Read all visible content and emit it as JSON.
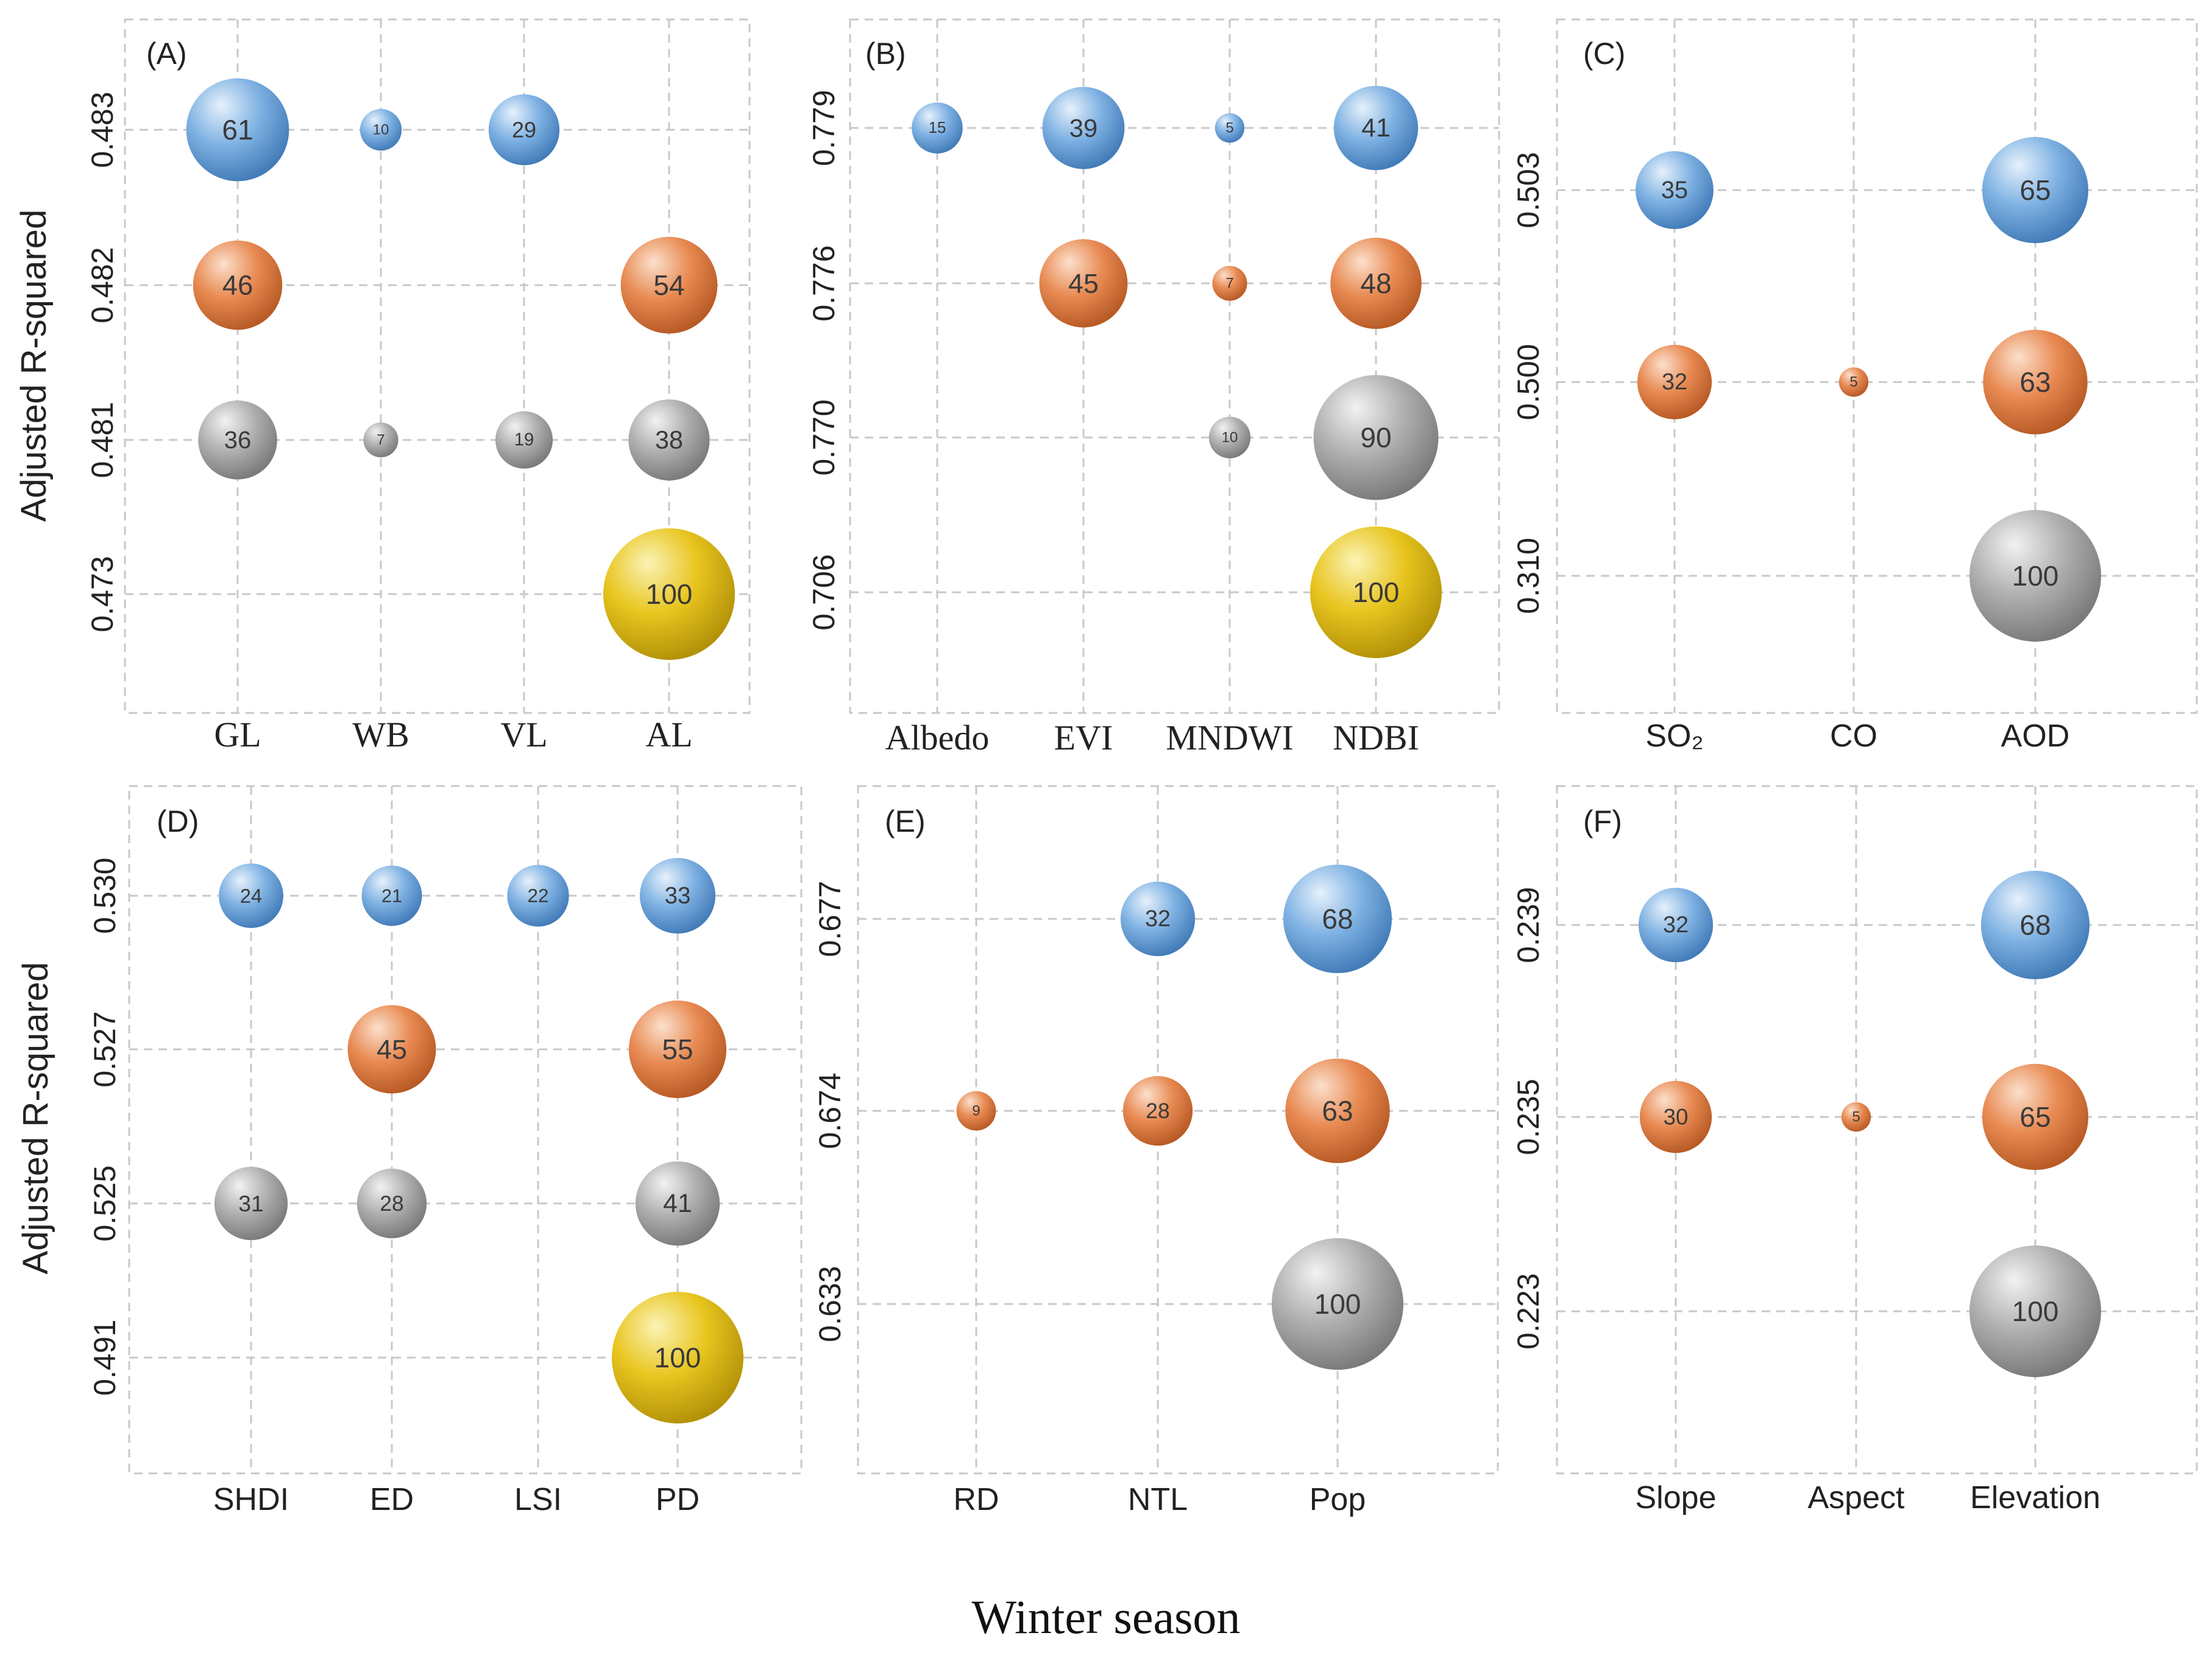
{
  "footer": "Winter season",
  "colors": {
    "blue": "#6fa8dc",
    "orange": "#e4834a",
    "gray": "#a9a9a9",
    "gold": "#e2c21c",
    "grid": "#c8c8c8"
  },
  "chart_data": [
    {
      "type": "scatter",
      "panel": "(A)",
      "ylabel": "Adjusted R-squared",
      "xfont": "serif",
      "categories": [
        "GL",
        "WB",
        "VL",
        "AL"
      ],
      "y_levels": [
        "0.483",
        "0.482",
        "0.481",
        "0.473"
      ],
      "points": [
        {
          "x": "GL",
          "y": "0.483",
          "value": 61,
          "color": "blue"
        },
        {
          "x": "WB",
          "y": "0.483",
          "value": 10,
          "color": "blue"
        },
        {
          "x": "VL",
          "y": "0.483",
          "value": 29,
          "color": "blue"
        },
        {
          "x": "GL",
          "y": "0.482",
          "value": 46,
          "color": "orange"
        },
        {
          "x": "AL",
          "y": "0.482",
          "value": 54,
          "color": "orange"
        },
        {
          "x": "GL",
          "y": "0.481",
          "value": 36,
          "color": "gray"
        },
        {
          "x": "WB",
          "y": "0.481",
          "value": 7,
          "color": "gray"
        },
        {
          "x": "VL",
          "y": "0.481",
          "value": 19,
          "color": "gray"
        },
        {
          "x": "AL",
          "y": "0.481",
          "value": 38,
          "color": "gray"
        },
        {
          "x": "AL",
          "y": "0.473",
          "value": 100,
          "color": "gold"
        }
      ]
    },
    {
      "type": "scatter",
      "panel": "(B)",
      "ylabel": "",
      "xfont": "serif",
      "categories": [
        "Albedo",
        "EVI",
        "MNDWI",
        "NDBI"
      ],
      "y_levels": [
        "0.779",
        "0.776",
        "0.770",
        "0.706"
      ],
      "points": [
        {
          "x": "Albedo",
          "y": "0.779",
          "value": 15,
          "color": "blue"
        },
        {
          "x": "EVI",
          "y": "0.779",
          "value": 39,
          "color": "blue"
        },
        {
          "x": "MNDWI",
          "y": "0.779",
          "value": 5,
          "color": "blue"
        },
        {
          "x": "NDBI",
          "y": "0.779",
          "value": 41,
          "color": "blue"
        },
        {
          "x": "EVI",
          "y": "0.776",
          "value": 45,
          "color": "orange"
        },
        {
          "x": "MNDWI",
          "y": "0.776",
          "value": 7,
          "color": "orange"
        },
        {
          "x": "NDBI",
          "y": "0.776",
          "value": 48,
          "color": "orange"
        },
        {
          "x": "MNDWI",
          "y": "0.770",
          "value": 10,
          "color": "gray"
        },
        {
          "x": "NDBI",
          "y": "0.770",
          "value": 90,
          "color": "gray"
        },
        {
          "x": "NDBI",
          "y": "0.706",
          "value": 100,
          "color": "gold"
        }
      ]
    },
    {
      "type": "scatter",
      "panel": "(C)",
      "ylabel": "",
      "xfont": "sans",
      "categories": [
        "SO₂",
        "CO",
        "AOD"
      ],
      "y_levels": [
        "0.503",
        "0.500",
        "0.310"
      ],
      "points": [
        {
          "x": "SO₂",
          "y": "0.503",
          "value": 35,
          "color": "blue"
        },
        {
          "x": "AOD",
          "y": "0.503",
          "value": 65,
          "color": "blue"
        },
        {
          "x": "SO₂",
          "y": "0.500",
          "value": 32,
          "color": "orange"
        },
        {
          "x": "CO",
          "y": "0.500",
          "value": 5,
          "color": "orange"
        },
        {
          "x": "AOD",
          "y": "0.500",
          "value": 63,
          "color": "orange"
        },
        {
          "x": "AOD",
          "y": "0.310",
          "value": 100,
          "color": "gray"
        }
      ]
    },
    {
      "type": "scatter",
      "panel": "(D)",
      "ylabel": "Adjusted R-squared",
      "xfont": "sans",
      "categories": [
        "SHDI",
        "ED",
        "LSI",
        "PD"
      ],
      "y_levels": [
        "0.530",
        "0.527",
        "0.525",
        "0.491"
      ],
      "points": [
        {
          "x": "SHDI",
          "y": "0.530",
          "value": 24,
          "color": "blue"
        },
        {
          "x": "ED",
          "y": "0.530",
          "value": 21,
          "color": "blue"
        },
        {
          "x": "LSI",
          "y": "0.530",
          "value": 22,
          "color": "blue"
        },
        {
          "x": "PD",
          "y": "0.530",
          "value": 33,
          "color": "blue"
        },
        {
          "x": "ED",
          "y": "0.527",
          "value": 45,
          "color": "orange"
        },
        {
          "x": "PD",
          "y": "0.527",
          "value": 55,
          "color": "orange"
        },
        {
          "x": "SHDI",
          "y": "0.525",
          "value": 31,
          "color": "gray"
        },
        {
          "x": "ED",
          "y": "0.525",
          "value": 28,
          "color": "gray"
        },
        {
          "x": "PD",
          "y": "0.525",
          "value": 41,
          "color": "gray"
        },
        {
          "x": "PD",
          "y": "0.491",
          "value": 100,
          "color": "gold"
        }
      ]
    },
    {
      "type": "scatter",
      "panel": "(E)",
      "ylabel": "",
      "xfont": "sans",
      "categories": [
        "RD",
        "NTL",
        "Pop"
      ],
      "y_levels": [
        "0.677",
        "0.674",
        "0.633"
      ],
      "points": [
        {
          "x": "NTL",
          "y": "0.677",
          "value": 32,
          "color": "blue"
        },
        {
          "x": "Pop",
          "y": "0.677",
          "value": 68,
          "color": "blue"
        },
        {
          "x": "RD",
          "y": "0.674",
          "value": 9,
          "color": "orange"
        },
        {
          "x": "NTL",
          "y": "0.674",
          "value": 28,
          "color": "orange"
        },
        {
          "x": "Pop",
          "y": "0.674",
          "value": 63,
          "color": "orange"
        },
        {
          "x": "Pop",
          "y": "0.633",
          "value": 100,
          "color": "gray"
        }
      ]
    },
    {
      "type": "scatter",
      "panel": "(F)",
      "ylabel": "",
      "xfont": "sans",
      "categories": [
        "Slope",
        "Aspect",
        "Elevation"
      ],
      "y_levels": [
        "0.239",
        "0.235",
        "0.223"
      ],
      "points": [
        {
          "x": "Slope",
          "y": "0.239",
          "value": 32,
          "color": "blue"
        },
        {
          "x": "Elevation",
          "y": "0.239",
          "value": 68,
          "color": "blue"
        },
        {
          "x": "Slope",
          "y": "0.235",
          "value": 30,
          "color": "orange"
        },
        {
          "x": "Aspect",
          "y": "0.235",
          "value": 5,
          "color": "orange"
        },
        {
          "x": "Elevation",
          "y": "0.235",
          "value": 65,
          "color": "orange"
        },
        {
          "x": "Elevation",
          "y": "0.223",
          "value": 100,
          "color": "gray"
        }
      ]
    }
  ]
}
